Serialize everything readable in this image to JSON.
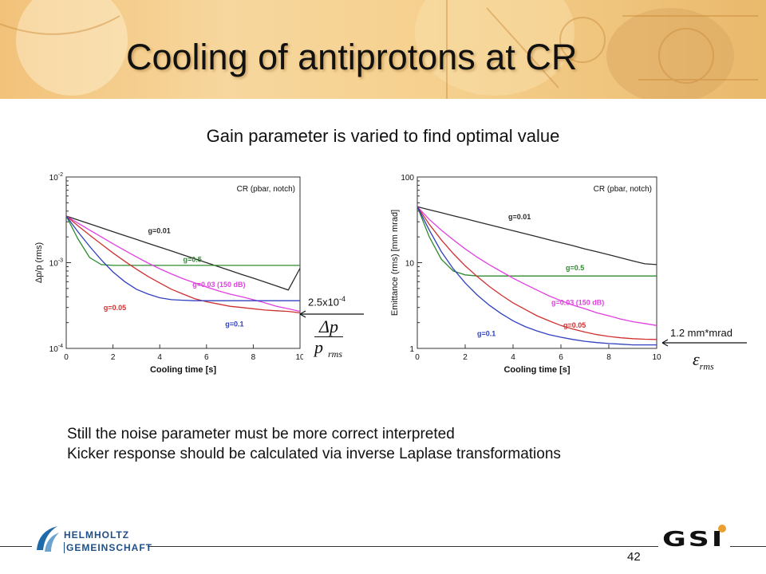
{
  "slide": {
    "title": "Cooling of antiprotons at CR",
    "subtitle": "Gain parameter is varied to find optimal value",
    "notes": [
      "Still the noise parameter must be more correct interpreted",
      "Kicker response should be calculated via inverse Laplase transformations"
    ],
    "page_number": "42",
    "logo_left_line1": "HELMHOLTZ",
    "logo_left_line2": "GEMEINSCHAFT",
    "logo_right": "GSI"
  },
  "annotations": {
    "left_value": "2.5x10",
    "left_value_exp": "-4",
    "left_formula_num": "Δp",
    "left_formula_den": "p",
    "left_formula_sub": "rms",
    "right_value": "1.2 mm*mrad",
    "right_formula": "ε",
    "right_formula_sub": "rms"
  },
  "colors": {
    "black_series": "#2b2b2b",
    "green_series": "#2e8b2e",
    "magenta_series": "#e040e0",
    "red_series": "#d03030",
    "blue_series": "#3040c0"
  },
  "chart_data": [
    {
      "type": "line",
      "title": "",
      "legend_text": "CR (pbar, notch)",
      "xlabel": "Cooling time [s]",
      "ylabel": "Δp/p (rms)",
      "yscale": "log",
      "xlim": [
        0,
        10
      ],
      "ylim": [
        0.0001,
        0.01
      ],
      "x_ticks": [
        "0",
        "2",
        "4",
        "6",
        "8",
        "10"
      ],
      "y_ticks": [
        {
          "value": 0.01,
          "label": "10",
          "exp": "-2"
        },
        {
          "value": 0.001,
          "label": "10",
          "exp": "-3"
        },
        {
          "value": 0.0001,
          "label": "10",
          "exp": "-4"
        }
      ],
      "x": [
        0,
        0.5,
        1,
        1.5,
        2,
        2.5,
        3,
        3.5,
        4,
        4.5,
        5,
        5.5,
        6,
        6.5,
        7,
        7.5,
        8,
        8.5,
        9,
        9.5,
        10
      ],
      "series": [
        {
          "name": "g=0.01",
          "color": "#2b2b2b",
          "values": [
            0.0035,
            0.00315,
            0.00284,
            0.00256,
            0.0023,
            0.00207,
            0.00187,
            0.00168,
            0.00152,
            0.00137,
            0.00123,
            0.00111,
            0.001,
            0.0009,
            0.00081,
            0.00073,
            0.00066,
            0.000595,
            0.000535,
            0.00048,
            0.00086
          ]
        },
        {
          "name": "g=0.5",
          "color": "#2e8b2e",
          "values": [
            0.0035,
            0.0019,
            0.00115,
            0.00095,
            0.00093,
            0.00093,
            0.00093,
            0.00093,
            0.00093,
            0.00093,
            0.00093,
            0.00093,
            0.00093,
            0.00093,
            0.00093,
            0.00093,
            0.00093,
            0.00093,
            0.00093,
            0.00093,
            0.00093
          ]
        },
        {
          "name": "g=0.03 (150 dB)",
          "color": "#e040e0",
          "values": [
            0.0035,
            0.0029,
            0.0024,
            0.002,
            0.00166,
            0.00139,
            0.00117,
            0.00099,
            0.00085,
            0.00074,
            0.00065,
            0.00058,
            0.00052,
            0.00047,
            0.00043,
            0.0004,
            0.00037,
            0.00034,
            0.00031,
            0.00029,
            0.00027
          ]
        },
        {
          "name": "g=0.05",
          "color": "#d03030",
          "values": [
            0.0035,
            0.0027,
            0.0021,
            0.00165,
            0.0013,
            0.00104,
            0.00084,
            0.00069,
            0.00058,
            0.00049,
            0.00043,
            0.00038,
            0.00035,
            0.00033,
            0.00031,
            0.0003,
            0.00029,
            0.00028,
            0.000275,
            0.00027,
            0.00026
          ]
        },
        {
          "name": "g=0.1",
          "color": "#3040c0",
          "values": [
            0.0035,
            0.0023,
            0.00155,
            0.00108,
            0.00078,
            0.0006,
            0.00049,
            0.00043,
            0.00039,
            0.00037,
            0.000365,
            0.00036,
            0.00036,
            0.00036,
            0.00036,
            0.00036,
            0.00036,
            0.00036,
            0.00036,
            0.00036,
            0.00036
          ]
        }
      ]
    },
    {
      "type": "line",
      "title": "",
      "legend_text": "CR (pbar, notch)",
      "xlabel": "Cooling time [s]",
      "ylabel": "Emittance (rms) [mm mrad]",
      "yscale": "log",
      "xlim": [
        0,
        10
      ],
      "ylim": [
        1,
        100
      ],
      "x_ticks": [
        "0",
        "2",
        "4",
        "6",
        "8",
        "10"
      ],
      "y_ticks": [
        {
          "value": 100,
          "label": "100"
        },
        {
          "value": 10,
          "label": "10"
        },
        {
          "value": 1,
          "label": "1"
        }
      ],
      "x": [
        0,
        0.5,
        1,
        1.5,
        2,
        2.5,
        3,
        3.5,
        4,
        4.5,
        5,
        5.5,
        6,
        6.5,
        7,
        7.5,
        8,
        8.5,
        9,
        9.5,
        10
      ],
      "series": [
        {
          "name": "g=0.01",
          "color": "#2b2b2b",
          "values": [
            45,
            41.5,
            38.3,
            35.3,
            32.6,
            30.1,
            27.7,
            25.6,
            23.6,
            21.8,
            20.1,
            18.5,
            17.1,
            15.8,
            14.5,
            13.4,
            12.4,
            11.4,
            10.5,
            9.7,
            9.5
          ]
        },
        {
          "name": "g=0.5",
          "color": "#2e8b2e",
          "values": [
            45,
            20,
            11,
            8,
            7.2,
            7,
            7,
            7,
            7,
            7,
            7,
            7,
            7,
            7,
            7,
            7,
            7,
            7,
            7,
            7,
            7
          ]
        },
        {
          "name": "g=0.03 (150 dB)",
          "color": "#e040e0",
          "values": [
            45,
            32,
            24,
            18.5,
            14.5,
            11.6,
            9.5,
            7.9,
            6.6,
            5.6,
            4.8,
            4.1,
            3.6,
            3.2,
            2.9,
            2.6,
            2.4,
            2.2,
            2.05,
            1.95,
            1.85
          ]
        },
        {
          "name": "g=0.05",
          "color": "#d03030",
          "values": [
            45,
            28,
            18.5,
            12.8,
            9.2,
            6.9,
            5.3,
            4.2,
            3.4,
            2.85,
            2.4,
            2.1,
            1.85,
            1.68,
            1.55,
            1.45,
            1.38,
            1.33,
            1.3,
            1.28,
            1.27
          ]
        },
        {
          "name": "g=0.1",
          "color": "#3040c0",
          "values": [
            45,
            24,
            13.5,
            8.5,
            5.8,
            4.2,
            3.2,
            2.55,
            2.1,
            1.8,
            1.6,
            1.45,
            1.35,
            1.27,
            1.21,
            1.17,
            1.14,
            1.12,
            1.1,
            1.1,
            1.1
          ]
        }
      ]
    }
  ]
}
